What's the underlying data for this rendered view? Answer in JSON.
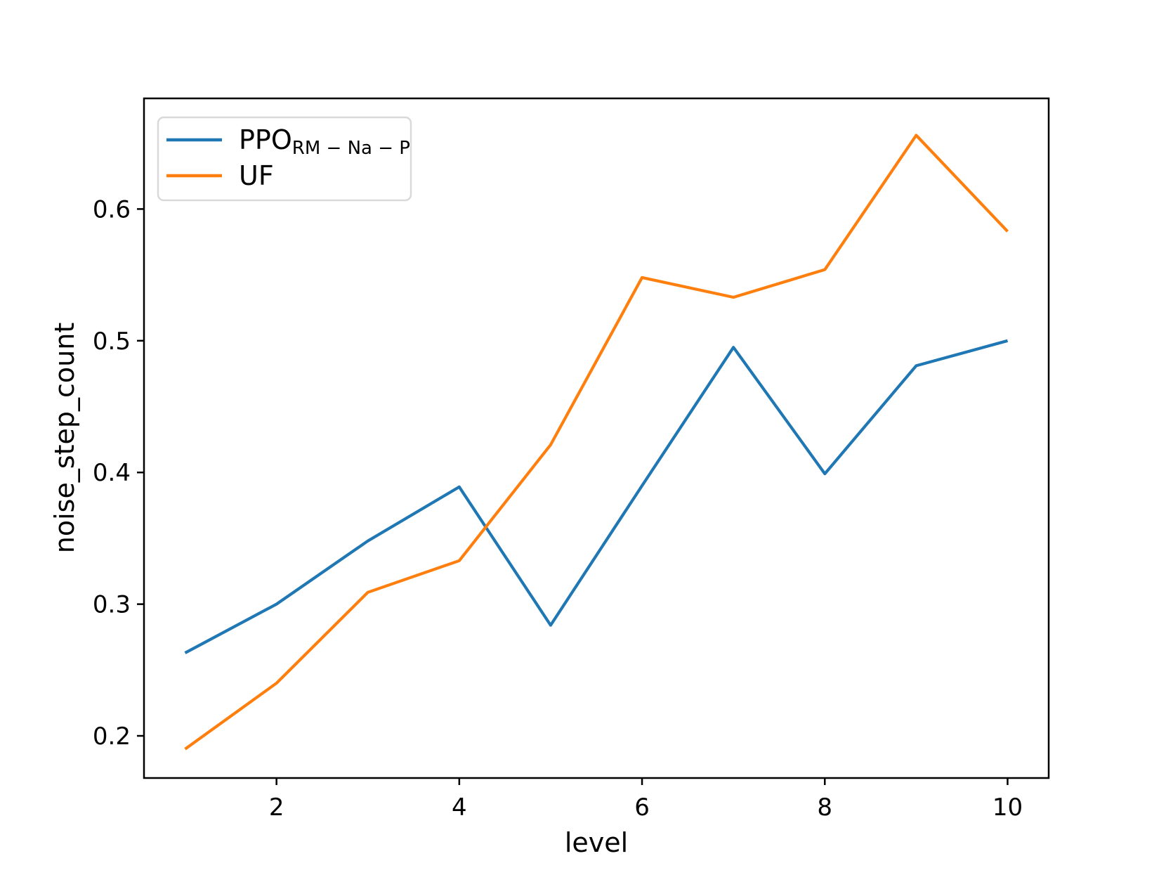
{
  "chart_data": {
    "type": "line",
    "title": "",
    "xlabel": "level",
    "ylabel": "noise_step_count",
    "x": [
      1,
      2,
      3,
      4,
      5,
      6,
      7,
      8,
      9,
      10
    ],
    "series": [
      {
        "name": "PPO_RM-Na-P",
        "legend_main": "PPO",
        "legend_sub": "RM − Na − P",
        "color": "#1f77b4",
        "values": [
          0.263,
          0.3,
          0.348,
          0.389,
          0.284,
          0.39,
          0.495,
          0.399,
          0.481,
          0.5
        ]
      },
      {
        "name": "UF",
        "legend_main": "UF",
        "legend_sub": "",
        "color": "#ff7f0e",
        "values": [
          0.19,
          0.24,
          0.309,
          0.333,
          0.421,
          0.548,
          0.533,
          0.554,
          0.656,
          0.583
        ]
      }
    ],
    "xlim": [
      0.55,
      10.45
    ],
    "ylim": [
      0.168,
      0.684
    ],
    "xticks": [
      2,
      4,
      6,
      8,
      10
    ],
    "yticks": [
      0.2,
      0.3,
      0.4,
      0.5,
      0.6
    ],
    "grid": false,
    "legend_position": "upper left",
    "legend_border_color": "#d9d9d9",
    "axis_color": "#000000",
    "background_color": "#ffffff"
  }
}
